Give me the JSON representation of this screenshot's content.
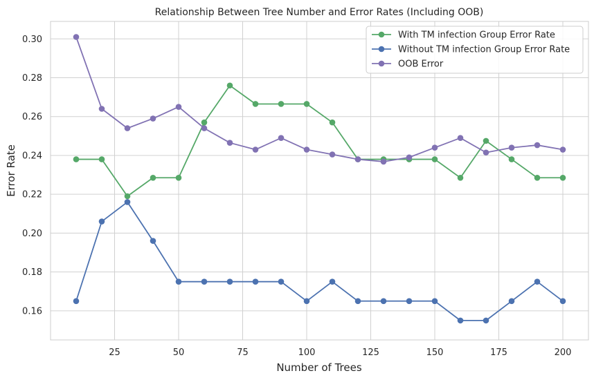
{
  "chart_data": {
    "type": "line",
    "title": "Relationship Between Tree Number and Error Rates (Including OOB)",
    "xlabel": "Number of Trees",
    "ylabel": "Error Rate",
    "xlim": [
      0,
      210
    ],
    "ylim": [
      0.145,
      0.309
    ],
    "xticks": [
      25,
      50,
      75,
      100,
      125,
      150,
      175,
      200
    ],
    "yticks": [
      0.16,
      0.18,
      0.2,
      0.22,
      0.24,
      0.26,
      0.28,
      0.3
    ],
    "xtick_labels": [
      "25",
      "50",
      "75",
      "100",
      "125",
      "150",
      "175",
      "200"
    ],
    "ytick_labels": [
      "0.16",
      "0.18",
      "0.20",
      "0.22",
      "0.24",
      "0.26",
      "0.28",
      "0.30"
    ],
    "x": [
      10,
      20,
      30,
      40,
      50,
      60,
      70,
      80,
      90,
      100,
      110,
      120,
      130,
      140,
      150,
      160,
      170,
      180,
      190,
      200
    ],
    "grid": true,
    "legend_position": "top-right",
    "series": [
      {
        "name": "With TM infection Group Error Rate",
        "color": "#55a868",
        "values": [
          0.238,
          0.238,
          0.219,
          0.2285,
          0.2285,
          0.257,
          0.276,
          0.2665,
          0.2665,
          0.2665,
          0.257,
          0.238,
          0.238,
          0.238,
          0.238,
          0.2285,
          0.2475,
          0.238,
          0.2285,
          0.2285
        ]
      },
      {
        "name": "Without TM infection Group Error Rate",
        "color": "#4c72b0",
        "values": [
          0.165,
          0.206,
          0.216,
          0.196,
          0.175,
          0.175,
          0.175,
          0.175,
          0.175,
          0.165,
          0.175,
          0.165,
          0.165,
          0.165,
          0.165,
          0.155,
          0.155,
          0.165,
          0.175,
          0.165
        ]
      },
      {
        "name": "OOB Error",
        "color": "#8172b3",
        "values": [
          0.301,
          0.264,
          0.254,
          0.259,
          0.265,
          0.254,
          0.2465,
          0.243,
          0.249,
          0.243,
          0.2405,
          0.238,
          0.2368,
          0.239,
          0.244,
          0.249,
          0.2415,
          0.244,
          0.2453,
          0.243
        ]
      }
    ]
  }
}
